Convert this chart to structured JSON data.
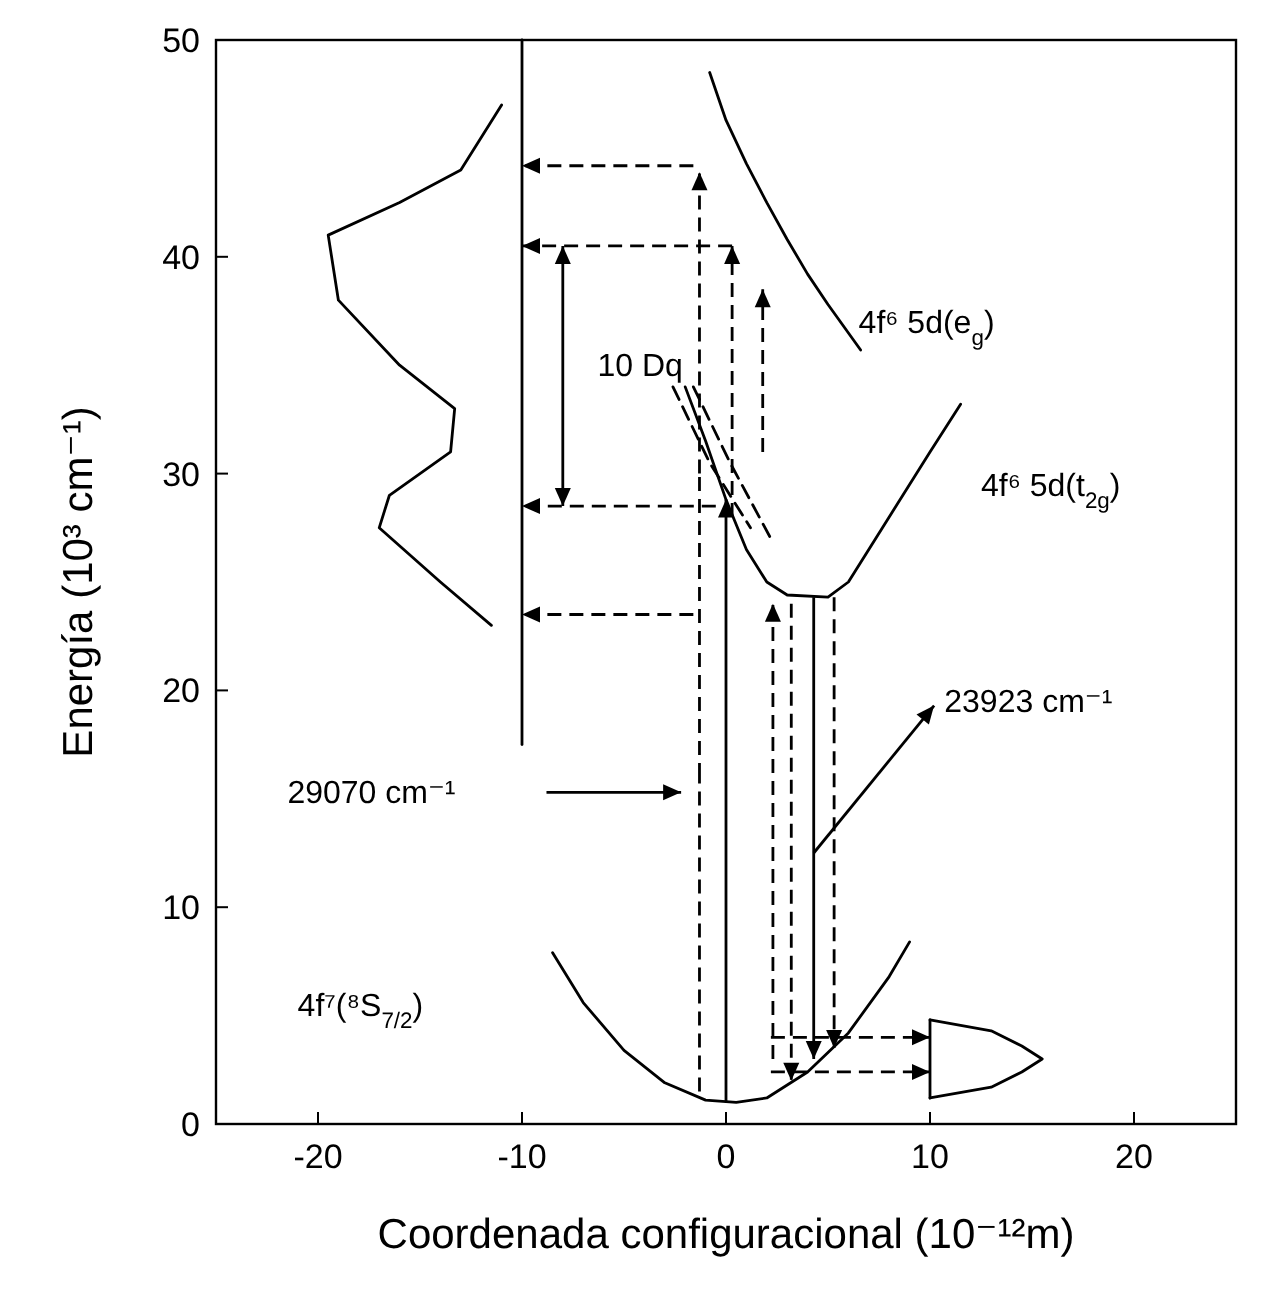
{
  "chart_data": {
    "type": "line",
    "xlabel": "Coordenada configuracional (10⁻¹²m)",
    "ylabel": "Energía (10³ cm⁻¹)",
    "xlim": [
      -25,
      25
    ],
    "ylim": [
      0,
      50
    ],
    "xticks": [
      -20,
      -10,
      0,
      10,
      20
    ],
    "yticks": [
      0,
      10,
      20,
      30,
      40,
      50
    ],
    "grid": false,
    "series": [
      {
        "color": "#000000",
        "line_style": "solid",
        "x": [
          -8.5,
          -7,
          -5,
          -3,
          -1,
          0.5,
          2,
          4,
          6,
          8,
          9
        ],
        "values": [
          7.9,
          5.6,
          3.4,
          1.9,
          1.1,
          1,
          1.2,
          2.4,
          4.2,
          6.8,
          8.4
        ]
      },
      {
        "color": "#000000",
        "line_style": "solid",
        "x": [
          -2,
          -1,
          0,
          1,
          2,
          3,
          5,
          6,
          8,
          10,
          11.5
        ],
        "values": [
          34,
          31.5,
          28.8,
          26.5,
          25,
          24.4,
          24.3,
          25,
          28,
          31,
          33.2
        ]
      },
      {
        "color": "#000000",
        "line_style": "solid",
        "x": [
          -0.8,
          0,
          1,
          2,
          3,
          4,
          5,
          6.6
        ],
        "values": [
          48.5,
          46.3,
          44.3,
          42.5,
          40.8,
          39.2,
          37.8,
          35.7
        ]
      },
      {
        "color": "#000000",
        "line_style": "solid",
        "x": [
          -10,
          -10
        ],
        "values": [
          17.5,
          50
        ]
      },
      {
        "color": "#000000",
        "line_style": "solid",
        "x": [
          -11,
          -13,
          -16,
          -19.5,
          -19,
          -16,
          -13.3,
          -13.5,
          -16.5,
          -17,
          -14,
          -11.5
        ],
        "values": [
          47,
          44,
          42.5,
          41,
          38,
          35,
          33,
          31,
          29,
          27.5,
          25,
          23
        ]
      },
      {
        "color": "#000000",
        "line_style": "solid",
        "x": [
          10,
          10
        ],
        "values": [
          1.2,
          4.8
        ]
      },
      {
        "color": "#000000",
        "line_style": "solid",
        "x": [
          10,
          13,
          14.5,
          15.5,
          14.5,
          13,
          10
        ],
        "values": [
          4.8,
          4.3,
          3.6,
          3,
          2.4,
          1.7,
          1.2
        ]
      },
      {
        "color": "#000000",
        "line_style": "dashed",
        "x": [
          -2.6,
          -0.8,
          1.2
        ],
        "values": [
          34,
          30.5,
          27.5
        ]
      },
      {
        "color": "#000000",
        "line_style": "dashed",
        "x": [
          -1.6,
          0.2,
          2.2
        ],
        "values": [
          34,
          30.5,
          27
        ]
      }
    ],
    "annotations": [
      "4f⁶ 5d(e$_{g}$)",
      "4f⁶ 5d(t$_{2g}$)",
      "4f⁷(⁸S$_{7/2}$)",
      "10 Dq",
      "29070 cm⁻¹",
      "23923 cm⁻¹"
    ]
  }
}
